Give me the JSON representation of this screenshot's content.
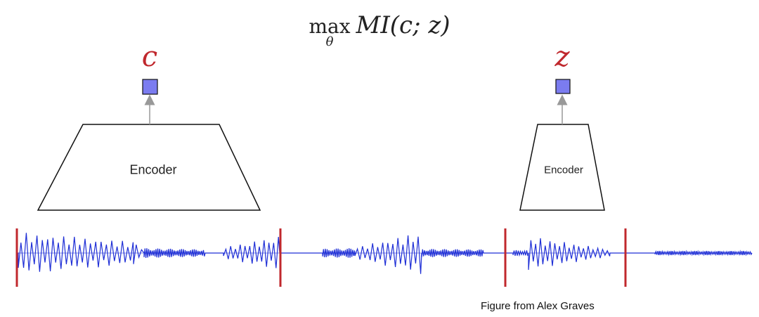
{
  "formula": {
    "operator": "max",
    "subscript": "θ",
    "expression": "MI(c; z)"
  },
  "latents": [
    {
      "symbol": "c"
    },
    {
      "symbol": "z"
    }
  ],
  "encoders": [
    {
      "label": "Encoder"
    },
    {
      "label": "Encoder"
    }
  ],
  "caption": "Figure from Alex Graves",
  "colors": {
    "latent_text": "#c0282d",
    "latent_box": "#7b7cf0",
    "waveform": "#1f2fd6",
    "segment_marker": "#c0282d",
    "arrow": "#999999"
  },
  "icons": {
    "latent_box": "square-node-icon",
    "arrow": "arrow-up-icon"
  }
}
